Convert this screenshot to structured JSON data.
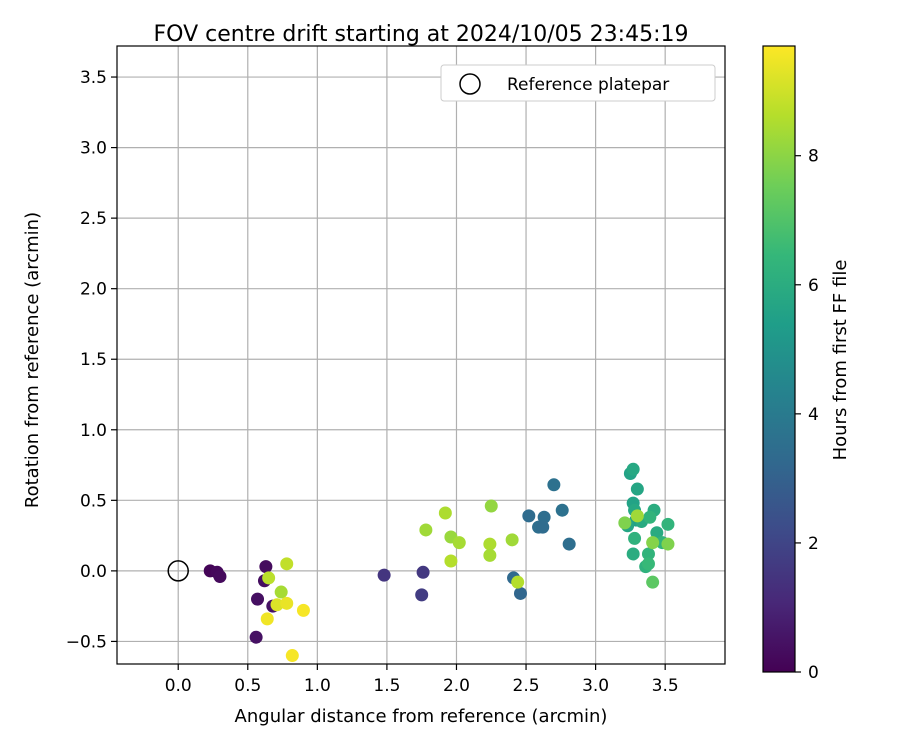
{
  "chart_data": {
    "type": "scatter",
    "title": "FOV centre drift starting at 2024/10/05 23:45:19",
    "xlabel": "Angular distance from reference (arcmin)",
    "ylabel": "Rotation from reference (arcmin)",
    "xlim": [
      -0.44,
      3.93
    ],
    "ylim": [
      -0.66,
      3.72
    ],
    "xticks": [
      "0.0",
      "0.5",
      "1.0",
      "1.5",
      "2.0",
      "2.5",
      "3.0",
      "3.5"
    ],
    "xtick_values": [
      0,
      0.5,
      1.0,
      1.5,
      2.0,
      2.5,
      3.0,
      3.5
    ],
    "yticks": [
      "−0.5",
      "0.0",
      "0.5",
      "1.0",
      "1.5",
      "2.0",
      "2.5",
      "3.0",
      "3.5"
    ],
    "ytick_values": [
      -0.5,
      0,
      0.5,
      1.0,
      1.5,
      2.0,
      2.5,
      3.0,
      3.5
    ],
    "grid": true,
    "legend": {
      "position": "top-right",
      "entries": [
        "Reference platepar"
      ]
    },
    "reference_point": {
      "x": 0,
      "y": 0
    },
    "colorbar": {
      "label": "Hours from first FF file",
      "range": [
        0,
        9.7
      ],
      "ticks": [
        "0",
        "2",
        "4",
        "6",
        "8"
      ],
      "tick_values": [
        0,
        2,
        4,
        6,
        8
      ],
      "colormap": "viridis",
      "stops": [
        "#440154",
        "#482878",
        "#3e4a89",
        "#31688e",
        "#26828e",
        "#1f9e89",
        "#35b779",
        "#6ece58",
        "#b5de2b",
        "#fde725"
      ]
    },
    "points": [
      {
        "x": 0.23,
        "y": 0.0,
        "hours": 0.1
      },
      {
        "x": 0.28,
        "y": -0.01,
        "hours": 0.2
      },
      {
        "x": 0.3,
        "y": -0.04,
        "hours": 0.25
      },
      {
        "x": 0.63,
        "y": 0.03,
        "hours": 0.3
      },
      {
        "x": 0.62,
        "y": -0.07,
        "hours": 0.35
      },
      {
        "x": 0.57,
        "y": -0.2,
        "hours": 0.4
      },
      {
        "x": 0.56,
        "y": -0.47,
        "hours": 0.45
      },
      {
        "x": 0.68,
        "y": -0.25,
        "hours": 0.5
      },
      {
        "x": 1.48,
        "y": -0.03,
        "hours": 1.5
      },
      {
        "x": 1.76,
        "y": -0.01,
        "hours": 1.6
      },
      {
        "x": 1.75,
        "y": -0.17,
        "hours": 1.7
      },
      {
        "x": 2.7,
        "y": 0.61,
        "hours": 3.6
      },
      {
        "x": 2.52,
        "y": 0.39,
        "hours": 3.4
      },
      {
        "x": 2.63,
        "y": 0.38,
        "hours": 3.5
      },
      {
        "x": 2.76,
        "y": 0.43,
        "hours": 3.6
      },
      {
        "x": 2.59,
        "y": 0.31,
        "hours": 3.5
      },
      {
        "x": 2.62,
        "y": 0.31,
        "hours": 3.4
      },
      {
        "x": 2.81,
        "y": 0.19,
        "hours": 3.5
      },
      {
        "x": 2.41,
        "y": -0.05,
        "hours": 3.3
      },
      {
        "x": 2.46,
        "y": -0.16,
        "hours": 3.2
      },
      {
        "x": 3.25,
        "y": 0.69,
        "hours": 5.6
      },
      {
        "x": 3.27,
        "y": 0.72,
        "hours": 5.8
      },
      {
        "x": 3.3,
        "y": 0.58,
        "hours": 5.7
      },
      {
        "x": 3.27,
        "y": 0.48,
        "hours": 5.6
      },
      {
        "x": 3.28,
        "y": 0.43,
        "hours": 5.8
      },
      {
        "x": 3.29,
        "y": 0.36,
        "hours": 5.5
      },
      {
        "x": 3.33,
        "y": 0.35,
        "hours": 5.9
      },
      {
        "x": 3.23,
        "y": 0.32,
        "hours": 5.7
      },
      {
        "x": 3.42,
        "y": 0.43,
        "hours": 6.0
      },
      {
        "x": 3.39,
        "y": 0.38,
        "hours": 6.3
      },
      {
        "x": 3.28,
        "y": 0.23,
        "hours": 6.2
      },
      {
        "x": 3.44,
        "y": 0.27,
        "hours": 5.9
      },
      {
        "x": 3.48,
        "y": 0.2,
        "hours": 6.3
      },
      {
        "x": 3.38,
        "y": 0.12,
        "hours": 6.3
      },
      {
        "x": 3.27,
        "y": 0.12,
        "hours": 6.0
      },
      {
        "x": 3.36,
        "y": 0.03,
        "hours": 6.2
      },
      {
        "x": 3.38,
        "y": 0.05,
        "hours": 6.5
      },
      {
        "x": 3.52,
        "y": 0.33,
        "hours": 6.3
      },
      {
        "x": 3.21,
        "y": 0.34,
        "hours": 7.8
      },
      {
        "x": 3.3,
        "y": 0.39,
        "hours": 8.3
      },
      {
        "x": 3.41,
        "y": 0.2,
        "hours": 7.9
      },
      {
        "x": 3.52,
        "y": 0.19,
        "hours": 7.8
      },
      {
        "x": 3.41,
        "y": -0.08,
        "hours": 7.2
      },
      {
        "x": 1.92,
        "y": 0.41,
        "hours": 8.5
      },
      {
        "x": 1.78,
        "y": 0.29,
        "hours": 8.3
      },
      {
        "x": 1.96,
        "y": 0.24,
        "hours": 8.2
      },
      {
        "x": 2.02,
        "y": 0.2,
        "hours": 8.4
      },
      {
        "x": 1.96,
        "y": 0.07,
        "hours": 8.6
      },
      {
        "x": 2.25,
        "y": 0.46,
        "hours": 8.1
      },
      {
        "x": 2.24,
        "y": 0.19,
        "hours": 8.5
      },
      {
        "x": 2.24,
        "y": 0.11,
        "hours": 8.4
      },
      {
        "x": 2.4,
        "y": 0.22,
        "hours": 8.3
      },
      {
        "x": 2.44,
        "y": -0.08,
        "hours": 8.6
      },
      {
        "x": 0.65,
        "y": -0.05,
        "hours": 8.7
      },
      {
        "x": 0.78,
        "y": 0.05,
        "hours": 8.8
      },
      {
        "x": 0.74,
        "y": -0.15,
        "hours": 8.4
      },
      {
        "x": 0.71,
        "y": -0.24,
        "hours": 9.2
      },
      {
        "x": 0.78,
        "y": -0.23,
        "hours": 9.4
      },
      {
        "x": 0.64,
        "y": -0.34,
        "hours": 9.5
      },
      {
        "x": 0.9,
        "y": -0.28,
        "hours": 9.6
      },
      {
        "x": 0.82,
        "y": -0.6,
        "hours": 9.6
      }
    ]
  }
}
